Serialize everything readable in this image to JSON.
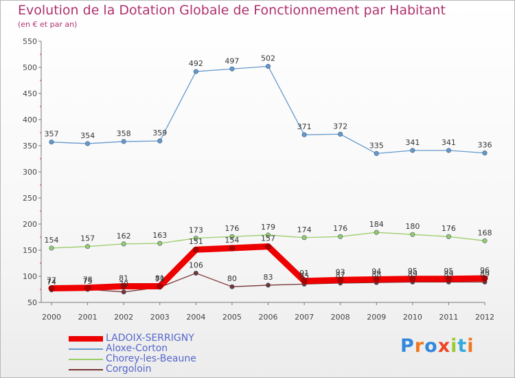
{
  "title": "Evolution de la Dotation Globale de Fonctionnement par Habitant",
  "subtitle": "(en € et par an)",
  "logo": "Proxiti",
  "chart_data": {
    "type": "line",
    "title": "Evolution de la Dotation Globale de Fonctionnement par Habitant",
    "subtitle": "(en € et par an)",
    "xlabel": "",
    "ylabel": "",
    "x": [
      "2000",
      "2001",
      "2002",
      "2003",
      "2004",
      "2005",
      "2006",
      "2007",
      "2008",
      "2009",
      "2010",
      "2011",
      "2012"
    ],
    "ylim": [
      50,
      550
    ],
    "yticks": [
      50,
      100,
      150,
      200,
      250,
      300,
      350,
      400,
      450,
      500,
      550
    ],
    "grid": false,
    "legend_position": "bottom-left",
    "series": [
      {
        "name": "LADOIX-SERRIGNY",
        "color": "#ee0000",
        "values": [
          77,
          78,
          81,
          81,
          151,
          154,
          157,
          91,
          93,
          94,
          95,
          95,
          96
        ],
        "labels": [
          "77",
          "78",
          "81",
          "81",
          "151",
          "154",
          "157",
          "91",
          "93",
          "94",
          "95",
          "95",
          "96"
        ]
      },
      {
        "name": "Aloxe-Corton",
        "color": "#6699cc",
        "values": [
          357,
          354,
          358,
          359,
          492,
          497,
          502,
          371,
          372,
          335,
          341,
          341,
          336
        ],
        "labels": [
          "357",
          "354",
          "358",
          "359",
          "492",
          "497",
          "502",
          "371",
          "372",
          "335",
          "341",
          "341",
          "336"
        ]
      },
      {
        "name": "Chorey-les-Beaune",
        "color": "#99cc66",
        "values": [
          154,
          157,
          162,
          163,
          173,
          176,
          179,
          174,
          176,
          184,
          180,
          176,
          168
        ],
        "labels": [
          "154",
          "157",
          "162",
          "163",
          "173",
          "176",
          "179",
          "174",
          "176",
          "184",
          "180",
          "176",
          "168"
        ]
      },
      {
        "name": "Corgoloin",
        "color": "#773333",
        "values": [
          74,
          75,
          70,
          79,
          106,
          80,
          83,
          85,
          87,
          88,
          89,
          89,
          89
        ],
        "labels": [
          "74",
          "75",
          "70",
          "79",
          "106",
          "80",
          "83",
          "85",
          "87",
          "88",
          "89",
          "89",
          "89"
        ]
      }
    ]
  }
}
